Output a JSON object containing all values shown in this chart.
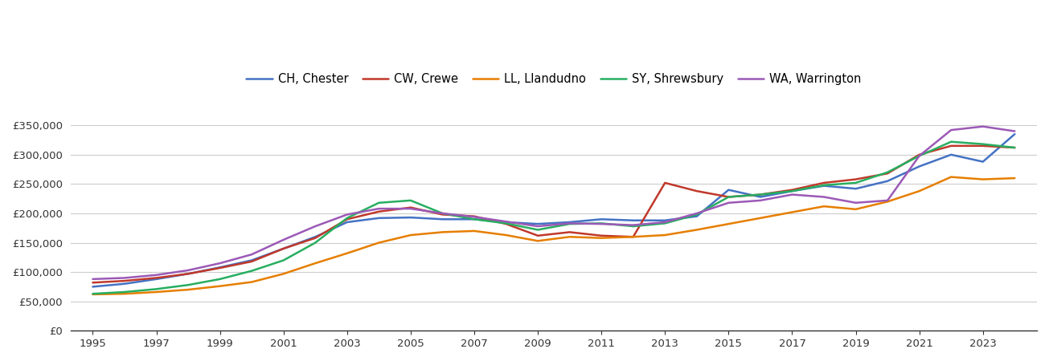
{
  "years": [
    1995,
    1996,
    1997,
    1998,
    1999,
    2000,
    2001,
    2002,
    2003,
    2004,
    2005,
    2006,
    2007,
    2008,
    2009,
    2010,
    2011,
    2012,
    2013,
    2014,
    2015,
    2016,
    2017,
    2018,
    2019,
    2020,
    2021,
    2022,
    2023,
    2024
  ],
  "CH_Chester": [
    75000,
    80000,
    88000,
    97000,
    108000,
    120000,
    140000,
    160000,
    185000,
    192000,
    193000,
    190000,
    190000,
    185000,
    182000,
    185000,
    190000,
    188000,
    188000,
    195000,
    240000,
    228000,
    238000,
    247000,
    242000,
    255000,
    280000,
    300000,
    288000,
    335000
  ],
  "CW_Crewe": [
    82000,
    85000,
    90000,
    97000,
    107000,
    118000,
    140000,
    158000,
    190000,
    203000,
    210000,
    198000,
    195000,
    182000,
    162000,
    168000,
    162000,
    160000,
    252000,
    238000,
    228000,
    232000,
    240000,
    252000,
    258000,
    268000,
    300000,
    315000,
    315000,
    312000
  ],
  "LL_Llandudno": [
    62000,
    63000,
    66000,
    70000,
    76000,
    83000,
    97000,
    115000,
    132000,
    150000,
    163000,
    168000,
    170000,
    163000,
    153000,
    160000,
    158000,
    160000,
    163000,
    172000,
    182000,
    192000,
    202000,
    212000,
    207000,
    220000,
    238000,
    262000,
    258000,
    260000
  ],
  "SY_Shrewsbury": [
    63000,
    66000,
    71000,
    78000,
    88000,
    102000,
    120000,
    150000,
    192000,
    218000,
    222000,
    200000,
    190000,
    183000,
    172000,
    182000,
    183000,
    178000,
    183000,
    198000,
    228000,
    232000,
    238000,
    248000,
    252000,
    270000,
    298000,
    322000,
    318000,
    312000
  ],
  "WA_Warrington": [
    88000,
    90000,
    95000,
    103000,
    115000,
    130000,
    155000,
    178000,
    198000,
    208000,
    208000,
    200000,
    194000,
    186000,
    178000,
    183000,
    182000,
    180000,
    185000,
    200000,
    218000,
    222000,
    232000,
    228000,
    218000,
    222000,
    298000,
    342000,
    348000,
    340000
  ],
  "colors": {
    "CH_Chester": "#4472C4",
    "CW_Crewe": "#C0392B",
    "LL_Llandudno": "#E67E00",
    "SY_Shrewsbury": "#27AE60",
    "WA_Warrington": "#9B59B6"
  },
  "legend_labels": {
    "CH_Chester": "CH, Chester",
    "CW_Crewe": "CW, Crewe",
    "LL_Llandudno": "LL, Llandudno",
    "SY_Shrewsbury": "SY, Shrewsbury",
    "WA_Warrington": "WA, Warrington"
  },
  "ylim": [
    0,
    375000
  ],
  "yticks": [
    0,
    50000,
    100000,
    150000,
    200000,
    250000,
    300000,
    350000
  ],
  "xticks": [
    1995,
    1997,
    1999,
    2001,
    2003,
    2005,
    2007,
    2009,
    2011,
    2013,
    2015,
    2017,
    2019,
    2021,
    2023
  ],
  "xlim": [
    1994.3,
    2024.7
  ],
  "background_color": "#ffffff",
  "grid_color": "#cccccc",
  "line_width": 1.8,
  "figsize": [
    13.05,
    4.5
  ],
  "dpi": 100
}
